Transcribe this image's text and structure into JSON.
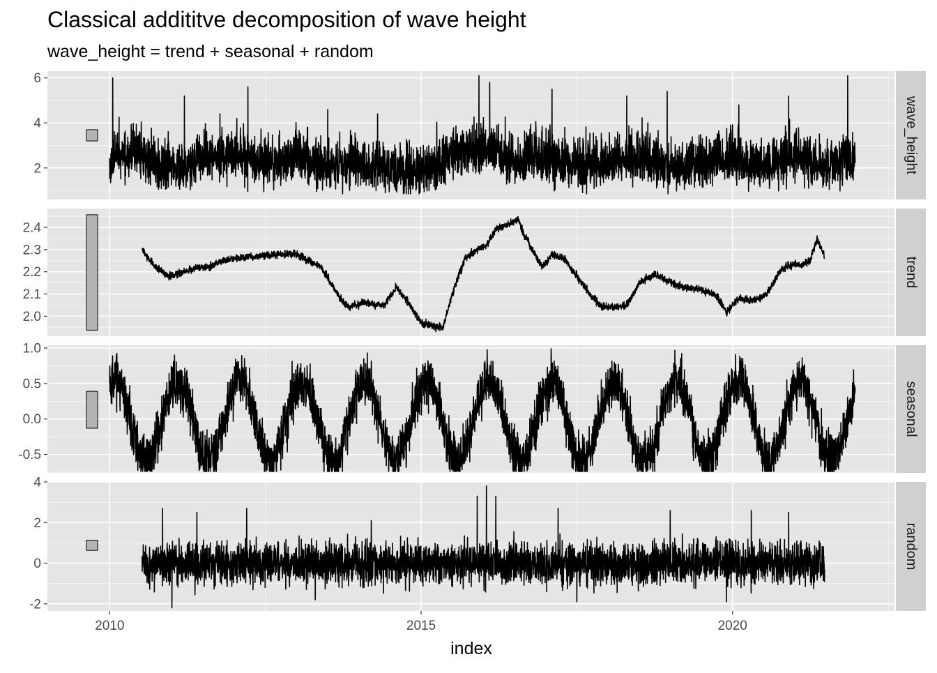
{
  "chart_data": {
    "type": "line",
    "title": "Classical addititve decomposition of wave height",
    "subtitle": "wave_height = trend + seasonal + random",
    "xlabel": "index",
    "x_ticks": [
      2010,
      2015,
      2020
    ],
    "x_tick_labels": [
      "2010",
      "2015",
      "2020"
    ],
    "xlim": [
      2009.0,
      2022.6
    ],
    "data_range": [
      2010.0,
      2021.97
    ],
    "colors": {
      "panel_bg": "#e5e5e5",
      "grid": "#ffffff",
      "line": "#000000",
      "strip_bg": "#d0d0d0",
      "scale_bar": "#b3b3b3"
    },
    "panels": [
      {
        "name": "wave_height",
        "strip": "wave_height",
        "ylim": [
          0.6,
          6.3
        ],
        "y_ticks": [
          2,
          4,
          6
        ],
        "y_tick_labels": [
          "2",
          "4",
          "6"
        ],
        "scale_bar": [
          3.2,
          3.7
        ],
        "anchors": [
          [
            2010.0,
            1.8
          ],
          [
            2010.1,
            2.5
          ],
          [
            2010.4,
            2.6
          ],
          [
            2010.8,
            2.0
          ],
          [
            2011.2,
            1.95
          ],
          [
            2011.6,
            2.45
          ],
          [
            2012.1,
            2.5
          ],
          [
            2012.5,
            2.15
          ],
          [
            2013.0,
            2.4
          ],
          [
            2013.5,
            2.0
          ],
          [
            2014.0,
            2.1
          ],
          [
            2014.6,
            1.8
          ],
          [
            2015.1,
            1.8
          ],
          [
            2015.5,
            2.5
          ],
          [
            2016.0,
            2.8
          ],
          [
            2016.5,
            2.2
          ],
          [
            2016.9,
            2.5
          ],
          [
            2017.5,
            2.0
          ],
          [
            2018.0,
            2.2
          ],
          [
            2018.5,
            2.4
          ],
          [
            2019.0,
            2.0
          ],
          [
            2019.5,
            2.2
          ],
          [
            2020.0,
            2.3
          ],
          [
            2020.5,
            2.1
          ],
          [
            2021.0,
            2.4
          ],
          [
            2021.5,
            2.1
          ],
          [
            2021.97,
            2.3
          ]
        ],
        "noise": 0.55,
        "spikes": [
          [
            2010.05,
            6.0
          ],
          [
            2011.2,
            5.2
          ],
          [
            2012.22,
            5.6
          ],
          [
            2013.5,
            4.6
          ],
          [
            2014.3,
            4.4
          ],
          [
            2015.93,
            6.1
          ],
          [
            2016.1,
            5.8
          ],
          [
            2017.1,
            5.5
          ],
          [
            2018.3,
            5.2
          ],
          [
            2018.95,
            5.4
          ],
          [
            2020.1,
            4.8
          ],
          [
            2020.9,
            5.2
          ],
          [
            2021.85,
            6.1
          ]
        ]
      },
      {
        "name": "trend",
        "strip": "trend",
        "ylim": [
          1.91,
          2.485
        ],
        "y_ticks": [
          2.0,
          2.1,
          2.2,
          2.3,
          2.4
        ],
        "y_tick_labels": [
          "2.0",
          "2.1",
          "2.2",
          "2.3",
          "2.4"
        ],
        "scale_bar": [
          1.937,
          2.457
        ],
        "range": [
          2010.52,
          2021.48
        ],
        "anchors": [
          [
            2010.52,
            2.305
          ],
          [
            2010.62,
            2.26
          ],
          [
            2010.75,
            2.22
          ],
          [
            2010.95,
            2.18
          ],
          [
            2011.2,
            2.2
          ],
          [
            2011.4,
            2.22
          ],
          [
            2011.6,
            2.22
          ],
          [
            2011.8,
            2.25
          ],
          [
            2012.0,
            2.26
          ],
          [
            2012.4,
            2.27
          ],
          [
            2012.8,
            2.28
          ],
          [
            2013.0,
            2.28
          ],
          [
            2013.2,
            2.25
          ],
          [
            2013.4,
            2.22
          ],
          [
            2013.55,
            2.15
          ],
          [
            2013.7,
            2.08
          ],
          [
            2013.85,
            2.04
          ],
          [
            2014.1,
            2.06
          ],
          [
            2014.4,
            2.05
          ],
          [
            2014.6,
            2.13
          ],
          [
            2014.8,
            2.06
          ],
          [
            2015.0,
            1.97
          ],
          [
            2015.2,
            1.955
          ],
          [
            2015.35,
            1.95
          ],
          [
            2015.5,
            2.1
          ],
          [
            2015.7,
            2.26
          ],
          [
            2015.9,
            2.3
          ],
          [
            2016.05,
            2.32
          ],
          [
            2016.2,
            2.39
          ],
          [
            2016.45,
            2.42
          ],
          [
            2016.55,
            2.44
          ],
          [
            2016.65,
            2.37
          ],
          [
            2016.8,
            2.29
          ],
          [
            2016.95,
            2.22
          ],
          [
            2017.1,
            2.28
          ],
          [
            2017.3,
            2.26
          ],
          [
            2017.5,
            2.18
          ],
          [
            2017.7,
            2.1
          ],
          [
            2017.9,
            2.04
          ],
          [
            2018.1,
            2.04
          ],
          [
            2018.3,
            2.05
          ],
          [
            2018.5,
            2.15
          ],
          [
            2018.75,
            2.19
          ],
          [
            2018.95,
            2.16
          ],
          [
            2019.2,
            2.13
          ],
          [
            2019.5,
            2.12
          ],
          [
            2019.75,
            2.09
          ],
          [
            2019.9,
            2.02
          ],
          [
            2020.1,
            2.08
          ],
          [
            2020.35,
            2.07
          ],
          [
            2020.55,
            2.1
          ],
          [
            2020.75,
            2.2
          ],
          [
            2020.9,
            2.23
          ],
          [
            2021.1,
            2.23
          ],
          [
            2021.25,
            2.25
          ],
          [
            2021.36,
            2.35
          ],
          [
            2021.45,
            2.29
          ],
          [
            2021.48,
            2.27
          ]
        ],
        "noise": 0.008
      },
      {
        "name": "seasonal",
        "strip": "seasonal",
        "ylim": [
          -0.76,
          1.04
        ],
        "y_ticks": [
          -0.5,
          0.0,
          0.5,
          1.0
        ],
        "y_tick_labels": [
          "-0.5",
          "0.0",
          "0.5",
          "1.0"
        ],
        "scale_bar": [
          -0.13,
          0.39
        ],
        "annual": {
          "peak_phase": 0.1,
          "trough_phase": 0.58,
          "peak": 0.55,
          "trough": -0.58,
          "noise": 0.17,
          "max": 1.0,
          "min": -0.74
        }
      },
      {
        "name": "random",
        "strip": "random",
        "ylim": [
          -2.35,
          4.0
        ],
        "y_ticks": [
          -2,
          0,
          2,
          4
        ],
        "y_tick_labels": [
          "-2",
          "0",
          "2",
          "4"
        ],
        "scale_bar": [
          0.63,
          1.13
        ],
        "range": [
          2010.52,
          2021.48
        ],
        "noise": 0.5,
        "spikes": [
          [
            2010.85,
            2.7
          ],
          [
            2011.0,
            -2.2
          ],
          [
            2011.4,
            2.5
          ],
          [
            2012.2,
            2.7
          ],
          [
            2013.3,
            -1.8
          ],
          [
            2014.2,
            2.1
          ],
          [
            2015.9,
            3.3
          ],
          [
            2016.05,
            3.8
          ],
          [
            2016.2,
            3.3
          ],
          [
            2017.2,
            2.7
          ],
          [
            2017.5,
            -1.9
          ],
          [
            2019.0,
            2.6
          ],
          [
            2019.9,
            -1.9
          ],
          [
            2020.3,
            2.6
          ],
          [
            2020.9,
            2.5
          ]
        ]
      }
    ]
  }
}
